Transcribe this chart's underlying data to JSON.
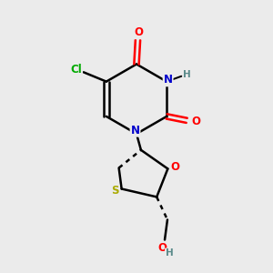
{
  "background_color": "#ebebeb",
  "bond_color": "#000000",
  "colors": {
    "N": "#0000cc",
    "O": "#ff0000",
    "S": "#aaaa00",
    "Cl": "#00aa00",
    "C": "#000000",
    "H": "#5a8a8a"
  },
  "figsize": [
    3.0,
    3.0
  ],
  "dpi": 100,
  "lw": 1.8,
  "off": 0.008
}
